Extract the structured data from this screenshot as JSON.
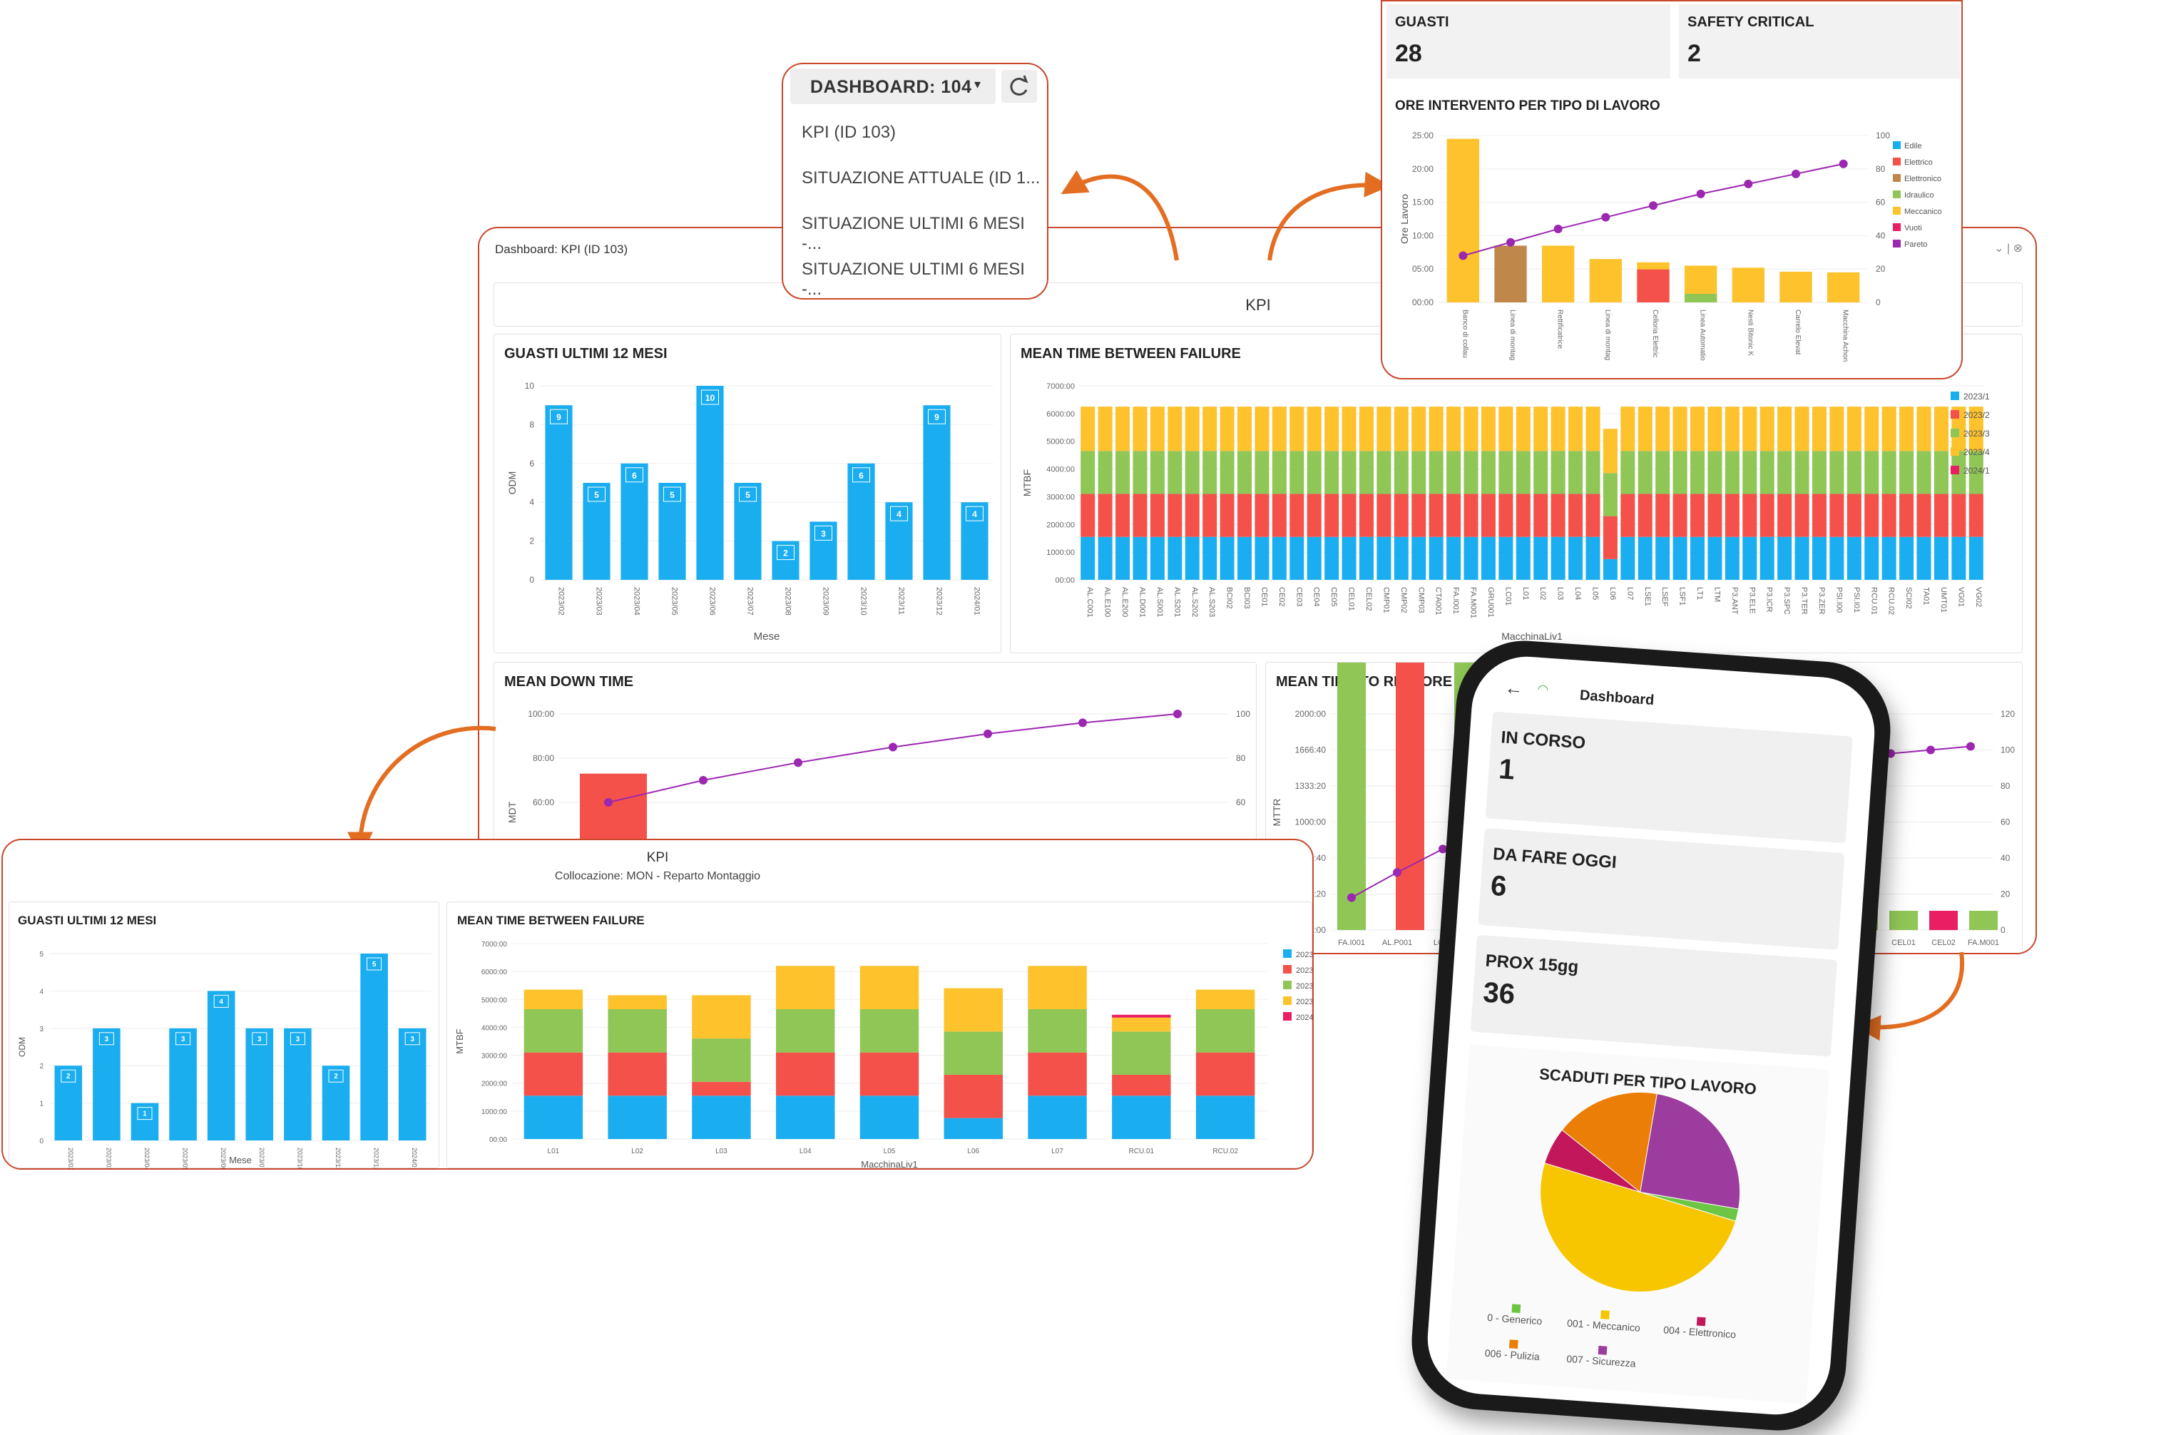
{
  "main_window": {
    "title": "Dashboard: KPI (ID 103)",
    "header": "KPI",
    "colors": {
      "accent": "#c9472b",
      "bar_blue": "#1aaef0"
    },
    "guasti": {
      "title": "GUASTI ULTIMI 12 MESI"
    },
    "mtbf": {
      "title": "MEAN TIME BETWEEN FAILURE"
    },
    "mdt": {
      "title": "MEAN DOWN TIME"
    },
    "mttr": {
      "title": "MEAN TIME TO RESTORE"
    }
  },
  "dropdown": {
    "selected": "DASHBOARD: 104",
    "options": [
      "KPI (ID 103)",
      "SITUAZIONE ATTUALE (ID 1...",
      "SITUAZIONE ULTIMI 6 MESI -...",
      "SITUAZIONE ULTIMI 6 MESI -..."
    ],
    "icons": {
      "caret": "caret-down-icon",
      "refresh": "refresh-icon"
    }
  },
  "top_right_card": {
    "stats": [
      {
        "label": "GUASTI",
        "value": "28"
      },
      {
        "label": "SAFETY CRITICAL",
        "value": "2"
      }
    ],
    "ore_title": "ORE INTERVENTO PER TIPO DI LAVORO"
  },
  "bottom_left_card": {
    "header_title": "KPI",
    "header_subtitle": "Collocazione: MON - Reparto Montaggio",
    "guasti_title": "GUASTI ULTIMI 12 MESI",
    "mtbf_title": "MEAN TIME BETWEEN FAILURE"
  },
  "phone": {
    "title": "Dashboard",
    "cards": [
      {
        "label": "IN CORSO",
        "value": "1"
      },
      {
        "label": "DA FARE OGGI",
        "value": "6"
      },
      {
        "label": "PROX 15gg",
        "value": "36"
      }
    ],
    "pie_title": "SCADUTI PER TIPO LAVORO",
    "icons": {
      "back": "back-arrow-icon",
      "wifi": "wifi-icon"
    }
  },
  "chart_data": [
    {
      "id": "main_guasti",
      "type": "bar",
      "title": "GUASTI ULTIMI 12 MESI",
      "xlabel": "Mese",
      "ylabel": "ODM",
      "ylim": [
        0,
        10
      ],
      "categories": [
        "2023/02",
        "2023/03",
        "2023/04",
        "2023/05",
        "2023/06",
        "2023/07",
        "2023/08",
        "2023/09",
        "2023/10",
        "2023/11",
        "2023/12",
        "2024/01"
      ],
      "values": [
        9,
        5,
        6,
        5,
        10,
        5,
        2,
        3,
        6,
        4,
        9,
        4
      ],
      "yticks": [
        "0",
        "2",
        "4",
        "6",
        "8",
        "10"
      ]
    },
    {
      "id": "main_mtbf",
      "type": "bar",
      "title": "MEAN TIME BETWEEN FAILURE",
      "stacked": true,
      "xlabel": "MacchinaLiv1",
      "ylabel": "MTBF",
      "ylim": [
        0,
        7000
      ],
      "yticks": [
        "00:00",
        "1000:00",
        "2000:00",
        "3000:00",
        "4000:00",
        "5000:00",
        "6000:00",
        "7000:00"
      ],
      "legend": [
        "2023/1",
        "2023/2",
        "2023/3",
        "2023/4",
        "2024/1"
      ],
      "colors": [
        "#1aaef0",
        "#f4514a",
        "#8fc656",
        "#fdc22c",
        "#e91e63"
      ],
      "categories": [
        "AL.C001",
        "AL.E100",
        "AL.E200",
        "AL.D001",
        "AL.S001",
        "AL.S201",
        "AL.S202",
        "AL.S203",
        "BCI02",
        "BCI03",
        "CE01",
        "CE02",
        "CE03",
        "CE04",
        "CE05",
        "CEL01",
        "CEL02",
        "CMP01",
        "CMP02",
        "CMP03",
        "CTA001",
        "FA.I001",
        "FA.M001",
        "GRU001",
        "LC01",
        "L01",
        "L02",
        "L03",
        "L04",
        "L05",
        "L06",
        "L07",
        "LSE1",
        "LSEF",
        "LSF1",
        "LT1",
        "LTM",
        "P3.ANT",
        "P3.ELE",
        "P3.ICR",
        "P3.SPC",
        "P3.TER",
        "P3.ZER",
        "PSI.I00",
        "PSI.I01",
        "RCU.01",
        "RCU.02",
        "SCI02",
        "TA01",
        "UMT01",
        "VG01",
        "VG02"
      ],
      "series": [
        {
          "name": "2023/1",
          "values": [
            1550,
            1550,
            1550,
            1550,
            1550,
            1550,
            1550,
            1550,
            1550,
            1550,
            1550,
            1550,
            1550,
            1550,
            1550,
            1550,
            1550,
            1550,
            1550,
            1550,
            1550,
            1550,
            1550,
            1550,
            1550,
            1550,
            1550,
            1550,
            1550,
            1550,
            750,
            1550,
            1550,
            1550,
            1550,
            1550,
            1550,
            1550,
            1550,
            1550,
            1550,
            1550,
            1550,
            1550,
            1550,
            1550,
            1550,
            1550,
            1550,
            1550,
            1550,
            1550
          ]
        },
        {
          "name": "2023/2",
          "values": [
            1550,
            1550,
            1550,
            1550,
            1550,
            1550,
            1550,
            1550,
            1550,
            1550,
            1550,
            1550,
            1550,
            1550,
            1550,
            1550,
            1550,
            1550,
            1550,
            1550,
            1550,
            1550,
            1550,
            1550,
            1550,
            1550,
            1550,
            1550,
            1550,
            1550,
            1550,
            1550,
            1550,
            1550,
            1550,
            1550,
            1550,
            1550,
            1550,
            1550,
            1550,
            1550,
            1550,
            1550,
            1550,
            1550,
            1550,
            1550,
            1550,
            1550,
            1550,
            1550
          ]
        },
        {
          "name": "2023/3",
          "values": [
            1550,
            1550,
            1550,
            1550,
            1550,
            1550,
            1550,
            1550,
            1550,
            1550,
            1550,
            1550,
            1550,
            1550,
            1550,
            1550,
            1550,
            1550,
            1550,
            1550,
            1550,
            1550,
            1550,
            1550,
            1550,
            1550,
            1550,
            1550,
            1550,
            1550,
            1550,
            1550,
            1550,
            1550,
            1550,
            1550,
            1550,
            1550,
            1550,
            1550,
            1550,
            1550,
            1550,
            1550,
            1550,
            1550,
            1550,
            1550,
            1550,
            1550,
            1550,
            1550
          ]
        },
        {
          "name": "2023/4",
          "values": [
            1600,
            1600,
            1600,
            1600,
            1600,
            1600,
            1600,
            1600,
            1600,
            1600,
            1600,
            1600,
            1600,
            1600,
            1600,
            1600,
            1600,
            1600,
            1600,
            1600,
            1600,
            1600,
            1600,
            1600,
            1600,
            1600,
            1600,
            1600,
            1600,
            1600,
            1600,
            1600,
            1600,
            1600,
            1600,
            1600,
            1600,
            1600,
            1600,
            1600,
            1600,
            1600,
            1600,
            1600,
            1600,
            1600,
            1600,
            1600,
            1600,
            1600,
            1600,
            1600
          ]
        },
        {
          "name": "2024/1",
          "values": [
            0,
            0,
            0,
            0,
            0,
            0,
            0,
            0,
            0,
            0,
            0,
            0,
            0,
            0,
            0,
            0,
            0,
            0,
            0,
            0,
            0,
            0,
            0,
            0,
            0,
            0,
            0,
            0,
            0,
            0,
            0,
            0,
            0,
            0,
            0,
            0,
            0,
            0,
            0,
            0,
            0,
            0,
            0,
            0,
            0,
            0,
            0,
            0,
            0,
            0,
            0,
            0
          ]
        }
      ]
    },
    {
      "id": "main_mdt",
      "type": "bar",
      "title": "MEAN DOWN TIME",
      "ylabel": "MDT",
      "yticks": [
        "100:00",
        "80:00",
        "60:00"
      ],
      "y2ticks": [
        "100",
        "80",
        "60"
      ],
      "values": [
        73
      ],
      "pareto": [
        60,
        70,
        78,
        85,
        91,
        96,
        100
      ]
    },
    {
      "id": "main_mttr",
      "type": "bar",
      "title": "MEAN TIME TO RESTORE",
      "ylabel": "MTTR",
      "yticks": [
        "2000:00",
        "1666:40",
        "1333:20",
        "1000:00",
        "666:40",
        "333:20",
        "00:00"
      ],
      "y2ticks": [
        "120",
        "100",
        "80",
        "60",
        "40",
        "20",
        "0"
      ],
      "categories": [
        "FA.I001",
        "AL.P001",
        "LC03",
        "CE01",
        "CEL01",
        "CEL02",
        "FA.M001"
      ],
      "pareto": [
        18,
        32,
        45,
        58,
        98,
        100,
        102
      ]
    },
    {
      "id": "ore_intervento",
      "type": "bar",
      "title": "ORE INTERVENTO PER TIPO DI LAVORO",
      "ylabel": "Ore Lavoro",
      "ylim": [
        0,
        25
      ],
      "yticks": [
        "00:00",
        "05:00",
        "10:00",
        "15:00",
        "20:00",
        "25:00"
      ],
      "y2ticks": [
        "0",
        "20",
        "40",
        "60",
        "80",
        "100"
      ],
      "categories": [
        "Banco di collau",
        "Linea di montag",
        "Rettificatrice",
        "Linea di montag",
        "Celloria Elettric",
        "Linea Automatio",
        "Nesti Bitonic K",
        "Carrelo Elevat",
        "Macchina Achon"
      ],
      "legend": [
        "Edile",
        "Elettrico",
        "Elettronico",
        "Idraulico",
        "Meccanico",
        "Vuoti",
        "Pareto"
      ],
      "colors": [
        "#1aaef0",
        "#f4514a",
        "#c0874b",
        "#8fc656",
        "#fdc22c",
        "#e91e63",
        "#9c27b0"
      ],
      "values": [
        24.5,
        8.5,
        8.5,
        6.5,
        6,
        5.5,
        5.2,
        4.6,
        4.5
      ],
      "pareto": [
        28,
        36,
        44,
        51,
        58,
        65,
        71,
        77,
        83
      ]
    },
    {
      "id": "bl_guasti",
      "type": "bar",
      "title": "GUASTI ULTIMI 12 MESI",
      "xlabel": "Mese",
      "ylabel": "ODM",
      "ylim": [
        0,
        5
      ],
      "categories": [
        "2023/02",
        "2023/03",
        "2023/04",
        "2023/05",
        "2023/06",
        "2023/07",
        "2023/10",
        "2023/11",
        "2023/12",
        "2024/01"
      ],
      "values": [
        2,
        3,
        1,
        3,
        4,
        3,
        3,
        2,
        5,
        3
      ],
      "yticks": [
        "0",
        "1",
        "2",
        "3",
        "4",
        "5"
      ]
    },
    {
      "id": "bl_mtbf",
      "type": "bar",
      "title": "MEAN TIME BETWEEN FAILURE",
      "stacked": true,
      "xlabel": "MacchinaLiv1",
      "ylabel": "MTBF",
      "ylim": [
        0,
        7000
      ],
      "yticks": [
        "00:00",
        "1000:00",
        "2000:00",
        "3000:00",
        "4000:00",
        "5000:00",
        "6000:00",
        "7000:00"
      ],
      "legend": [
        "2023/1",
        "2023/2",
        "2023/3",
        "2023/4",
        "2024/1"
      ],
      "colors": [
        "#1aaef0",
        "#f4514a",
        "#8fc656",
        "#fdc22c",
        "#e91e63"
      ],
      "categories": [
        "L01",
        "L02",
        "L03",
        "L04",
        "L05",
        "L06",
        "L07",
        "RCU.01",
        "RCU.02"
      ],
      "series": [
        {
          "name": "2023/1",
          "values": [
            1550,
            1550,
            1550,
            1550,
            1550,
            750,
            1550,
            1550,
            1550
          ]
        },
        {
          "name": "2023/2",
          "values": [
            1550,
            1550,
            500,
            1550,
            1550,
            1550,
            1550,
            750,
            1550
          ]
        },
        {
          "name": "2023/3",
          "values": [
            1550,
            1550,
            1550,
            1550,
            1550,
            1550,
            1550,
            1550,
            1550
          ]
        },
        {
          "name": "2023/4",
          "values": [
            700,
            500,
            1550,
            1550,
            1550,
            1550,
            1550,
            500,
            700
          ]
        },
        {
          "name": "2024/1",
          "values": [
            0,
            0,
            0,
            0,
            0,
            0,
            0,
            100,
            0
          ]
        }
      ]
    },
    {
      "id": "phone_pie",
      "type": "pie",
      "title": "SCADUTI PER TIPO LAVORO",
      "labels": [
        "0 - Generico",
        "001 - Meccanico",
        "004 - Elettronico",
        "006 - Pulizia",
        "007 - Sicurezza"
      ],
      "values": [
        2,
        50,
        6,
        17,
        25
      ],
      "colors": [
        "#6cc644",
        "#f7c600",
        "#c2185b",
        "#ea7e06",
        "#9c3c9e"
      ]
    }
  ]
}
